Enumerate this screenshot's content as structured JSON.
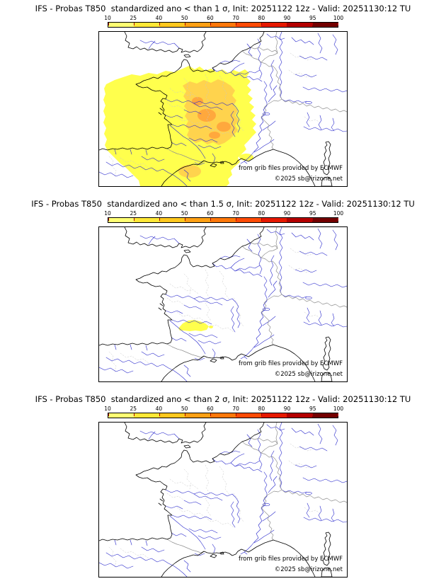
{
  "panels": [
    {
      "title": "IFS - Probas T850  standardized ano < than 1 σ, Init: 20251122 12z - Valid: 20251130:12 TU",
      "credit_line1": "from grib files provided by ECMWF",
      "credit_line2": "©2025 sb@irizone.net"
    },
    {
      "title": "IFS - Probas T850  standardized ano < than 1.5 σ, Init: 20251122 12z - Valid: 20251130:12 TU",
      "credit_line1": "from grib files provided by ECMWF",
      "credit_line2": "©2025 sb@irizone.net"
    },
    {
      "title": "IFS - Probas T850  standardized ano < than 2 σ, Init: 20251122 12z - Valid: 20251130:12 TU",
      "credit_line1": "from grib files provided by ECMWF",
      "credit_line2": "©2025 sb@irizone.net"
    }
  ],
  "colorbar": {
    "tick_labels": [
      "10",
      "25",
      "40",
      "50",
      "60",
      "70",
      "80",
      "90",
      "95",
      "100"
    ],
    "segment_colors": [
      "#FFFF73",
      "#FFE837",
      "#FFC81E",
      "#FFA014",
      "#FF780A",
      "#FF4B05",
      "#E61900",
      "#B40000",
      "#730000"
    ],
    "tick_color": "#aa0000"
  },
  "map": {
    "coast_color": "#000000",
    "river_color": "#2929cc",
    "border_color": "#909090",
    "admin_color": "#c8c8c8",
    "fill_levels": {
      "level1": "#FFFF4D",
      "level2": "#FFD34D",
      "level3": "#FFA83D"
    }
  }
}
